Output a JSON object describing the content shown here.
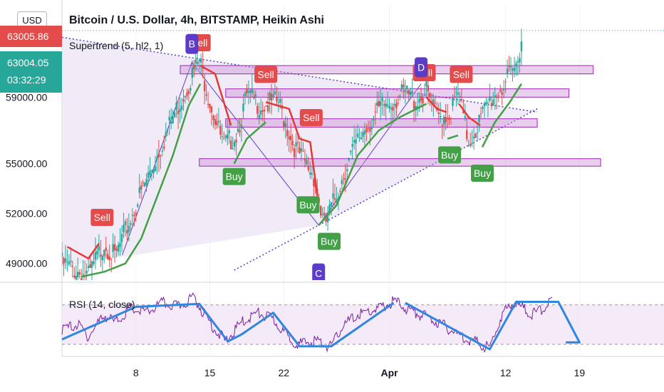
{
  "header": {
    "title": "Bitcoin / U.S. Dollar, 4h, BITSTAMP, Heikin Ashi",
    "indicator": "Supertrend (5, hl2, 1)",
    "rsi_label": "RSI (14, close)"
  },
  "currency_badge": "USD",
  "price_tags": {
    "high": "63005.86",
    "last": "63004.05",
    "countdown": "03:32:29"
  },
  "colors": {
    "bull": "#27a69a",
    "bear": "#e44b4b",
    "supertrend_up": "#43a047",
    "supertrend_down": "#e53935",
    "pattern_label": "#5c3bc9",
    "zone": "#9c27b0",
    "rsi": "#7b1fa2",
    "rsi_trend": "#2f86e0"
  },
  "chart_data": {
    "type": "candlestick",
    "title": "Bitcoin / U.S. Dollar, 4h, BITSTAMP, Heikin Ashi",
    "price_axis": {
      "ticks": [
        49000,
        52000,
        55000,
        59000
      ],
      "tick_labels": [
        "49000.00",
        "52000.00",
        "55000.00",
        "59000.00"
      ],
      "range": [
        48000,
        64500
      ]
    },
    "time_axis": {
      "ticks": [
        "8",
        "15",
        "22",
        "Apr",
        "12",
        "19"
      ],
      "tick_days": [
        8,
        15,
        22,
        32,
        43,
        50
      ],
      "range_days": [
        1,
        58
      ]
    },
    "key_prices": [
      {
        "day": 1.0,
        "price": 49000
      },
      {
        "day": 3.5,
        "price": 48200
      },
      {
        "day": 5.0,
        "price": 50300
      },
      {
        "day": 6.0,
        "price": 49300
      },
      {
        "day": 8.0,
        "price": 52500
      },
      {
        "day": 10.0,
        "price": 55500
      },
      {
        "day": 12.0,
        "price": 58500
      },
      {
        "day": 13.3,
        "price": 60300
      },
      {
        "day": 14.0,
        "price": 61200
      },
      {
        "day": 15.0,
        "price": 58800
      },
      {
        "day": 16.3,
        "price": 56000
      },
      {
        "day": 17.5,
        "price": 56800
      },
      {
        "day": 18.5,
        "price": 59000
      },
      {
        "day": 20.0,
        "price": 58500
      },
      {
        "day": 21.5,
        "price": 58700
      },
      {
        "day": 22.8,
        "price": 56300
      },
      {
        "day": 23.8,
        "price": 55200
      },
      {
        "day": 24.8,
        "price": 54400
      },
      {
        "day": 25.8,
        "price": 51200
      },
      {
        "day": 26.8,
        "price": 52800
      },
      {
        "day": 28.0,
        "price": 55000
      },
      {
        "day": 29.5,
        "price": 57000
      },
      {
        "day": 31.5,
        "price": 58500
      },
      {
        "day": 33.5,
        "price": 59200
      },
      {
        "day": 34.5,
        "price": 58800
      },
      {
        "day": 35.5,
        "price": 59300
      },
      {
        "day": 36.5,
        "price": 57800
      },
      {
        "day": 37.7,
        "price": 58000
      },
      {
        "day": 38.5,
        "price": 59200
      },
      {
        "day": 39.5,
        "price": 56300
      },
      {
        "day": 40.5,
        "price": 57500
      },
      {
        "day": 41.5,
        "price": 58800
      },
      {
        "day": 42.5,
        "price": 59500
      },
      {
        "day": 43.4,
        "price": 60200
      },
      {
        "day": 44.0,
        "price": 60800
      },
      {
        "day": 44.6,
        "price": 63000
      }
    ],
    "supertrend": {
      "up_segments": [
        [
          [
            2.8,
            48200
          ],
          [
            5,
            48500
          ],
          [
            7,
            49000
          ],
          [
            8.5,
            50500
          ],
          [
            10,
            53000
          ],
          [
            11.5,
            55500
          ],
          [
            13,
            58500
          ],
          [
            14.1,
            59800
          ]
        ],
        [
          [
            17.3,
            55000
          ],
          [
            18.5,
            56500
          ],
          [
            20.3,
            57500
          ]
        ],
        [
          [
            25.3,
            51300
          ],
          [
            27,
            52500
          ],
          [
            29,
            55500
          ],
          [
            31,
            57000
          ],
          [
            33,
            57800
          ],
          [
            35.5,
            58600
          ]
        ],
        [
          [
            37.5,
            56500
          ],
          [
            38.5,
            56700
          ]
        ],
        [
          [
            40.8,
            56000
          ],
          [
            42,
            57500
          ],
          [
            43.4,
            58700
          ],
          [
            44.5,
            59800
          ]
        ]
      ],
      "down_segments": [
        [
          [
            1.5,
            50000
          ],
          [
            3.5,
            49300
          ],
          [
            4.5,
            50200
          ]
        ],
        [
          [
            14.1,
            60900
          ],
          [
            15.5,
            60400
          ],
          [
            17,
            57300
          ]
        ],
        [
          [
            20.3,
            58700
          ],
          [
            22.5,
            58300
          ],
          [
            23.5,
            56500
          ],
          [
            24.5,
            56300
          ],
          [
            25.3,
            52500
          ]
        ],
        [
          [
            35.5,
            59000
          ],
          [
            36.5,
            58300
          ],
          [
            37.4,
            58100
          ]
        ],
        [
          [
            38.6,
            58600
          ],
          [
            39.5,
            57800
          ],
          [
            40.6,
            57300
          ]
        ]
      ]
    },
    "signals": [
      {
        "type": "Sell",
        "day": 4.8,
        "price": 51000
      },
      {
        "type": "Sell",
        "day": 14.0,
        "price": 61500
      },
      {
        "type": "Buy",
        "day": 17.3,
        "price": 55000
      },
      {
        "type": "Sell",
        "day": 20.3,
        "price": 59600
      },
      {
        "type": "Sell",
        "day": 24.6,
        "price": 57000
      },
      {
        "type": "Buy",
        "day": 24.3,
        "price": 53300
      },
      {
        "type": "Buy",
        "day": 26.3,
        "price": 51100
      },
      {
        "type": "Sell",
        "day": 35.3,
        "price": 59700
      },
      {
        "type": "Sell",
        "day": 38.8,
        "price": 59600
      },
      {
        "type": "Buy",
        "day": 37.7,
        "price": 56300
      },
      {
        "type": "Buy",
        "day": 40.8,
        "price": 55200
      }
    ],
    "pattern_points": [
      {
        "label": "B",
        "day": 13.3,
        "price": 62200
      },
      {
        "label": "C",
        "day": 25.3,
        "price": 48400
      },
      {
        "label": "D",
        "day": 35.0,
        "price": 60800
      }
    ],
    "zigzag": [
      [
        6.7,
        49500
      ],
      [
        13.3,
        61100
      ],
      [
        25.3,
        51300
      ],
      [
        35.0,
        59800
      ]
    ],
    "triangle": {
      "upper": [
        [
          1,
          62600
        ],
        [
          35,
          59200
        ]
      ],
      "lower": [
        [
          25.3,
          51300
        ],
        [
          46,
          58300
        ]
      ],
      "apex_day": 46
    },
    "zones": [
      {
        "x1": 12.2,
        "x2": 51.3,
        "high": 60900,
        "low": 60400
      },
      {
        "x1": 16.5,
        "x2": 49.0,
        "high": 59500,
        "low": 59000
      },
      {
        "x1": 16.5,
        "x2": 46.0,
        "high": 57700,
        "low": 57200
      },
      {
        "x1": 14.0,
        "x2": 52.0,
        "high": 55300,
        "low": 54850
      }
    ],
    "last_price": 63004.05,
    "rsi": {
      "label": "RSI (14, close)",
      "upper_band": 70,
      "lower_band": 30,
      "range": [
        20,
        90
      ],
      "trend_lines": [
        [
          [
            1,
            35
          ],
          [
            8,
            68
          ],
          [
            14,
            71
          ],
          [
            16.7,
            33
          ],
          [
            18,
            40
          ],
          [
            21,
            62
          ],
          [
            23.5,
            28
          ],
          [
            26.5,
            28
          ],
          [
            32.4,
            72
          ]
        ],
        [
          [
            33.5,
            72
          ],
          [
            41.5,
            25
          ],
          [
            44,
            73
          ],
          [
            48,
            73
          ],
          [
            50,
            32
          ],
          [
            48.7,
            32
          ]
        ]
      ],
      "series": [
        {
          "day": 1,
          "v": 45
        },
        {
          "day": 2.5,
          "v": 50
        },
        {
          "day": 3.5,
          "v": 38
        },
        {
          "day": 5,
          "v": 60
        },
        {
          "day": 6,
          "v": 52
        },
        {
          "day": 7.5,
          "v": 66
        },
        {
          "day": 9,
          "v": 62
        },
        {
          "day": 10.5,
          "v": 72
        },
        {
          "day": 12,
          "v": 68
        },
        {
          "day": 13.5,
          "v": 78
        },
        {
          "day": 14.5,
          "v": 60
        },
        {
          "day": 15.5,
          "v": 45
        },
        {
          "day": 16.5,
          "v": 33
        },
        {
          "day": 18,
          "v": 52
        },
        {
          "day": 19.5,
          "v": 62
        },
        {
          "day": 21,
          "v": 55
        },
        {
          "day": 22.5,
          "v": 36
        },
        {
          "day": 23.5,
          "v": 30
        },
        {
          "day": 25,
          "v": 34
        },
        {
          "day": 26.5,
          "v": 27
        },
        {
          "day": 27.5,
          "v": 48
        },
        {
          "day": 29,
          "v": 60
        },
        {
          "day": 31,
          "v": 66
        },
        {
          "day": 32.5,
          "v": 74
        },
        {
          "day": 34,
          "v": 64
        },
        {
          "day": 35.5,
          "v": 58
        },
        {
          "day": 37,
          "v": 50
        },
        {
          "day": 38.5,
          "v": 40
        },
        {
          "day": 40,
          "v": 33
        },
        {
          "day": 41.5,
          "v": 26
        },
        {
          "day": 42.5,
          "v": 56
        },
        {
          "day": 43.5,
          "v": 72
        },
        {
          "day": 44.5,
          "v": 68
        },
        {
          "day": 45.5,
          "v": 60
        },
        {
          "day": 46.5,
          "v": 66
        },
        {
          "day": 47.5,
          "v": 77
        }
      ]
    }
  }
}
